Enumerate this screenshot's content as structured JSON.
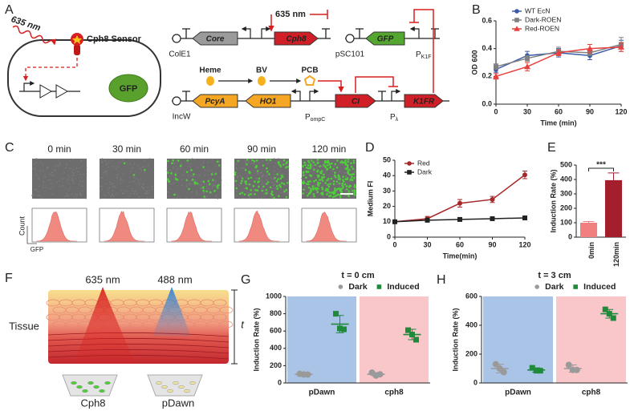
{
  "panel_a": {
    "label": "A",
    "laser": "635 nm",
    "sensor": "Cph8 Sensor",
    "reporter": "GFP",
    "parts": {
      "core": "Core",
      "cph8": "Cph8",
      "gfp": "GFP",
      "pcya": "PcyA",
      "ho1": "HO1",
      "ci": "CI",
      "k1fr": "K1FR"
    },
    "origins": {
      "cole1": "ColE1",
      "psc101": "pSC101",
      "incw": "IncW"
    },
    "promoters": {
      "pk1f": "P",
      "pk1f_sub": "K1F",
      "pompc": "P",
      "pompc_sub": "ompC",
      "plambda": "P",
      "plambda_sub": "λ"
    },
    "light": "635 nm",
    "metabolites": [
      "Heme",
      "BV",
      "PCB"
    ]
  },
  "panel_b": {
    "label": "B",
    "chart_data": {
      "type": "line",
      "x_label": "Time (min)",
      "y_label": "OD 600",
      "x": [
        0,
        30,
        60,
        90,
        120
      ],
      "xlim": [
        0,
        120
      ],
      "xticks": [
        0,
        30,
        60,
        90,
        120
      ],
      "ylim": [
        0,
        0.6
      ],
      "yticks": [
        {
          "value": 0,
          "label": "0.0"
        },
        {
          "value": 0.2,
          "label": "0.2"
        },
        {
          "value": 0.4,
          "label": "0.4"
        },
        {
          "value": 0.6,
          "label": "0.6"
        }
      ],
      "legend": "upper left",
      "series": [
        {
          "name": "WT EcN",
          "color": "#3a5ba8",
          "marker": "circle",
          "values": [
            0.25,
            0.35,
            0.37,
            0.35,
            0.42
          ],
          "errors": [
            0.02,
            0.03,
            0.03,
            0.03,
            0.04
          ]
        },
        {
          "name": "Dark-ROEN",
          "color": "#808080",
          "marker": "square",
          "values": [
            0.27,
            0.33,
            0.38,
            0.37,
            0.43
          ],
          "errors": [
            0.02,
            0.02,
            0.03,
            0.02,
            0.05
          ]
        },
        {
          "name": "Red-ROEN",
          "color": "#e8403e",
          "marker": "triangle",
          "values": [
            0.2,
            0.27,
            0.37,
            0.4,
            0.41
          ],
          "errors": [
            0.02,
            0.03,
            0.02,
            0.03,
            0.03
          ]
        }
      ]
    }
  },
  "panel_c": {
    "label": "C",
    "times": [
      "0 min",
      "30 min",
      "60 min",
      "90 min",
      "120 min"
    ],
    "y_label": "Count",
    "x_label": "GFP"
  },
  "panel_d": {
    "label": "D",
    "chart_data": {
      "type": "line",
      "x_label": "Time(min)",
      "y_label": "Medium FI",
      "x": [
        0,
        30,
        60,
        90,
        120
      ],
      "xlim": [
        0,
        120
      ],
      "xticks": [
        0,
        30,
        60,
        90,
        120
      ],
      "ylim": [
        0,
        50
      ],
      "yticks": [
        0,
        10,
        20,
        30,
        40,
        50
      ],
      "legend": "upper left",
      "series": [
        {
          "name": "Red",
          "color": "#a5282a",
          "marker": "circle",
          "values": [
            10,
            12,
            22,
            24.5,
            40.5
          ],
          "errors": [
            0.5,
            1.5,
            2.5,
            2,
            2.5
          ]
        },
        {
          "name": "Dark",
          "color": "#222222",
          "marker": "square",
          "values": [
            10,
            11,
            11.5,
            12,
            12.5
          ],
          "errors": [
            0.3,
            0.5,
            0.5,
            0.5,
            0.5
          ]
        }
      ]
    }
  },
  "panel_e": {
    "label": "E",
    "chart_data": {
      "type": "bar",
      "y_label": "Induction Rate (%)",
      "categories": [
        "0min",
        "120min"
      ],
      "values": [
        100,
        395
      ],
      "errors": [
        8,
        50
      ],
      "colors": [
        "#f08080",
        "#a31f2b"
      ],
      "ylim": [
        0,
        500
      ],
      "yticks": [
        0,
        100,
        200,
        300,
        400,
        500
      ],
      "annotation": "***"
    }
  },
  "panel_f": {
    "label": "F",
    "light_red": "635 nm",
    "light_blue": "488 nm",
    "tissue": "Tissue",
    "thickness": "t",
    "cells": [
      "Cph8",
      "pDawn"
    ]
  },
  "panel_g": {
    "label": "G",
    "chart_data": {
      "type": "dot",
      "title": "t = 0 cm",
      "y_label": "Induction Rate (%)",
      "categories": [
        "pDawn",
        "cph8"
      ],
      "backgrounds": [
        "#a9c4e6",
        "#f9c6ca"
      ],
      "legend": "top",
      "ylim": [
        0,
        1000
      ],
      "yticks": [
        0,
        200,
        400,
        600,
        800,
        1000
      ],
      "series": [
        {
          "name": "Dark",
          "color": "#9a9a9a",
          "values": [
            100,
            100
          ],
          "errors": [
            8,
            20
          ],
          "points": [
            [
              105,
              98,
              97
            ],
            [
              120,
              85,
              100
            ]
          ]
        },
        {
          "name": "Induced",
          "color": "#1e8a3a",
          "values": [
            680,
            560
          ],
          "errors": [
            100,
            60
          ],
          "points": [
            [
              800,
              630,
              620
            ],
            [
              610,
              560,
              500
            ]
          ]
        }
      ]
    }
  },
  "panel_h": {
    "label": "H",
    "chart_data": {
      "type": "dot",
      "title": "t = 3 cm",
      "y_label": "Induction Rate (%)",
      "categories": [
        "pDawn",
        "cph8"
      ],
      "backgrounds": [
        "#a9c4e6",
        "#f9c6ca"
      ],
      "legend": "top",
      "ylim": [
        0,
        600
      ],
      "yticks": [
        0,
        200,
        400,
        600
      ],
      "series": [
        {
          "name": "Dark",
          "color": "#9a9a9a",
          "values": [
            100,
            100
          ],
          "errors": [
            30,
            25
          ],
          "points": [
            [
              130,
              100,
              75
            ],
            [
              125,
              90,
              90
            ]
          ]
        },
        {
          "name": "Induced",
          "color": "#1e8a3a",
          "values": [
            90,
            480
          ],
          "errors": [
            15,
            30
          ],
          "points": [
            [
              105,
              85,
              85
            ],
            [
              510,
              480,
              450
            ]
          ]
        }
      ]
    }
  }
}
